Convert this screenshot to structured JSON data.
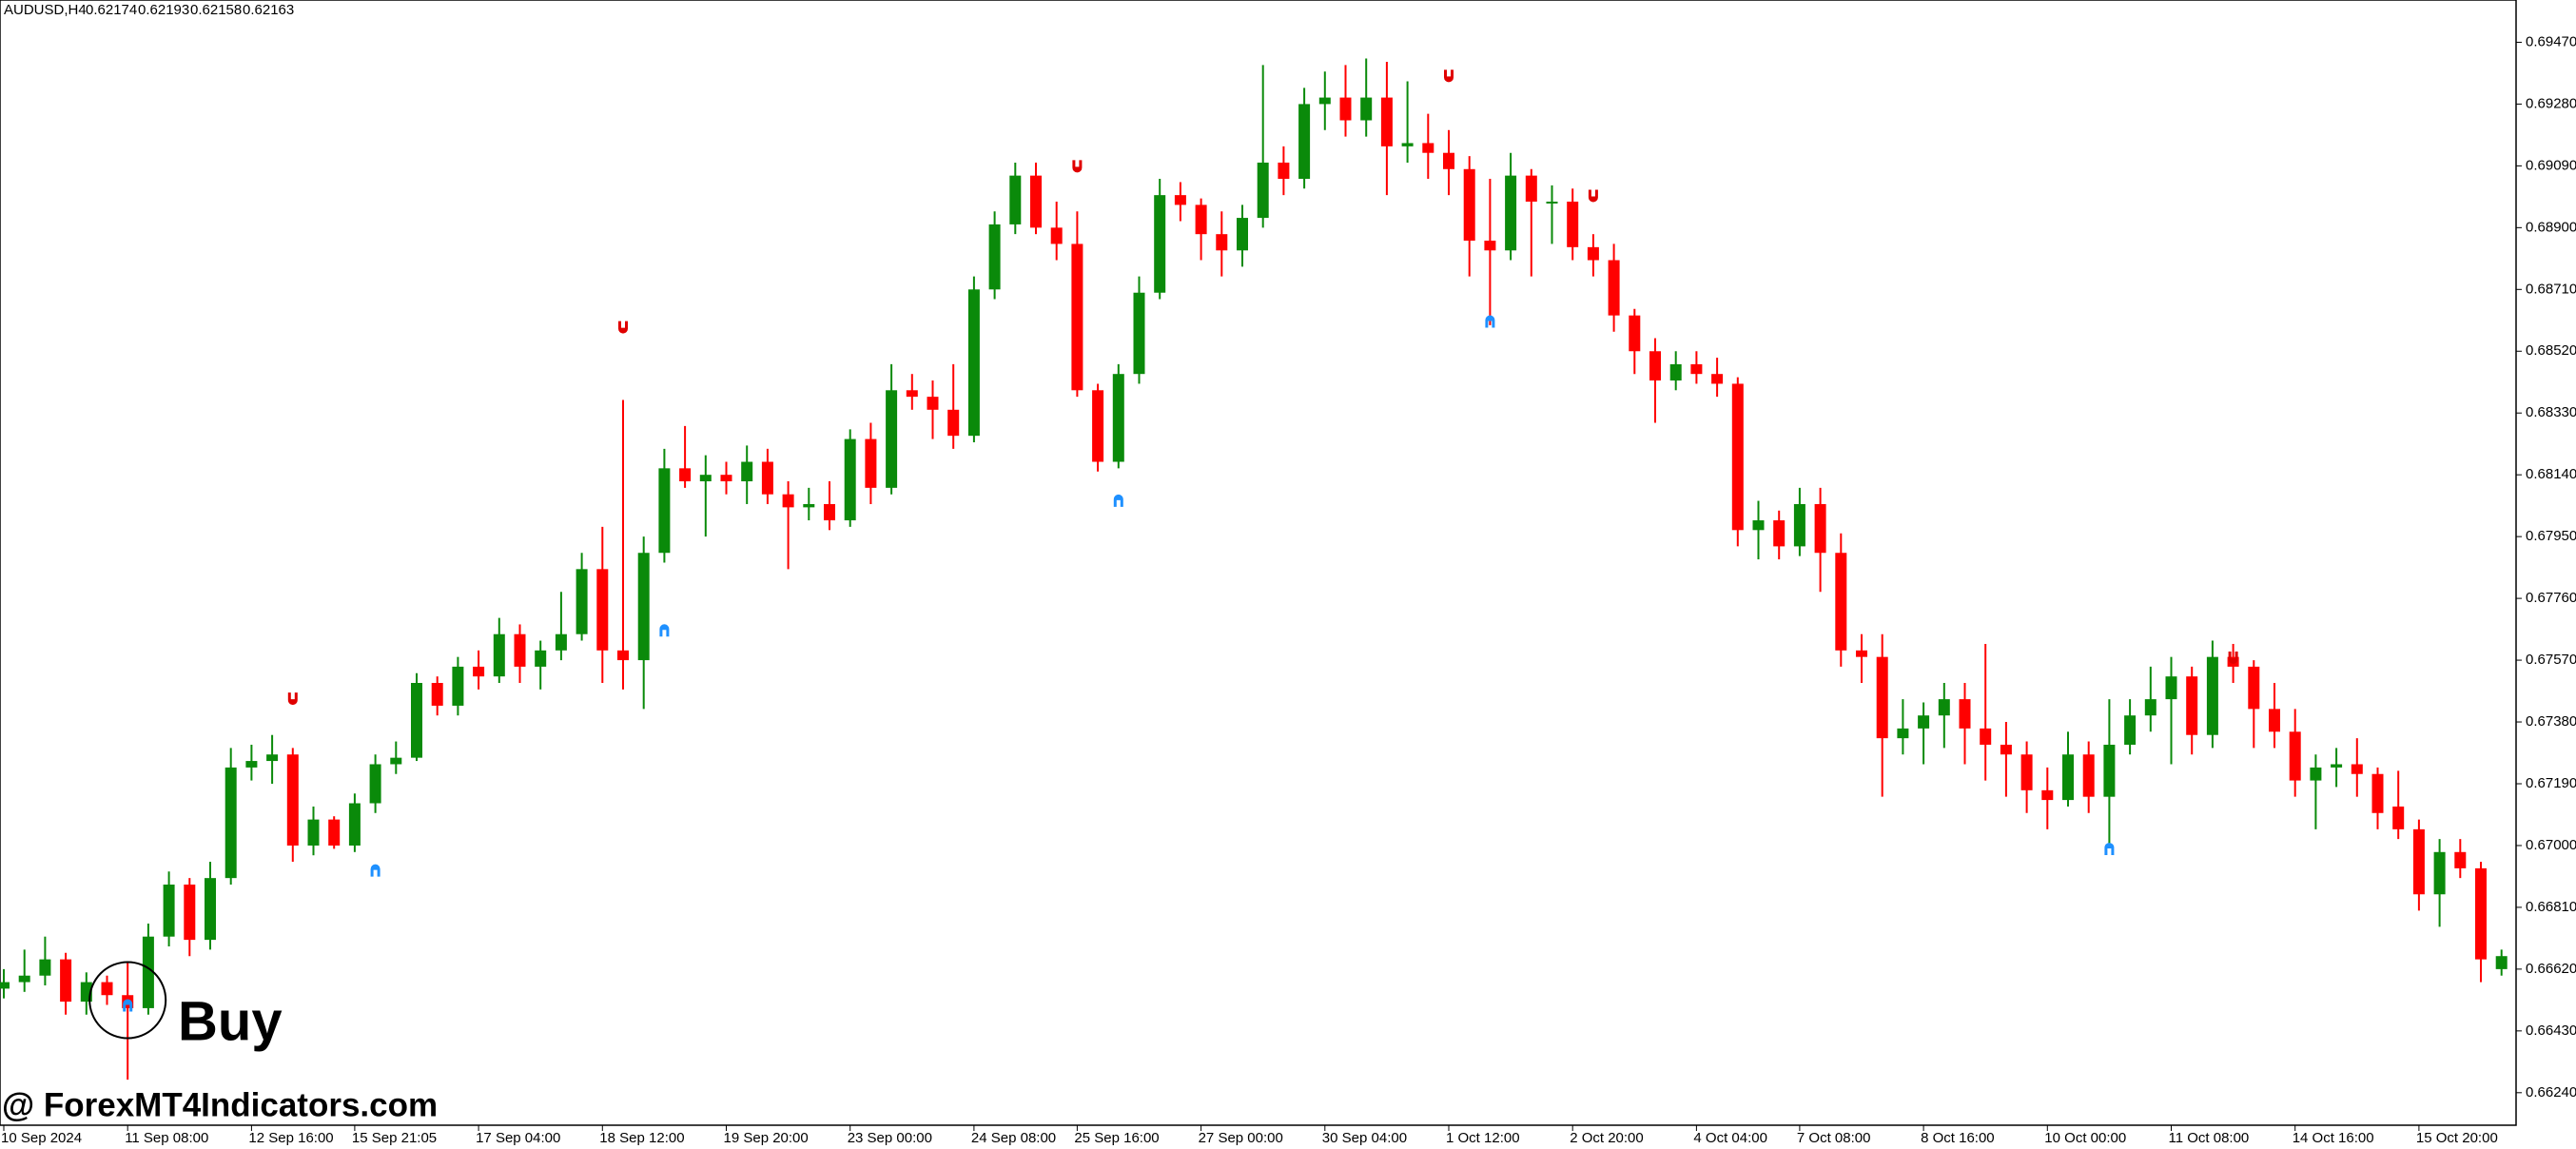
{
  "chart_data": {
    "type": "candlestick",
    "title": "AUDUSD,H4",
    "quote": [
      0.62174,
      0.62193,
      0.62158,
      0.62163
    ],
    "up_color": "#0a8a0a",
    "down_color": "#ff0000",
    "ylim": [
      0.6614,
      0.696
    ],
    "yticks": [
      {
        "value": 0.6947,
        "label": "0.69470"
      },
      {
        "value": 0.6928,
        "label": "0.69280"
      },
      {
        "value": 0.6909,
        "label": "0.69090"
      },
      {
        "value": 0.689,
        "label": "0.68900"
      },
      {
        "value": 0.6871,
        "label": "0.68710"
      },
      {
        "value": 0.6852,
        "label": "0.68520"
      },
      {
        "value": 0.6833,
        "label": "0.68330"
      },
      {
        "value": 0.6814,
        "label": "0.68140"
      },
      {
        "value": 0.6795,
        "label": "0.67950"
      },
      {
        "value": 0.6776,
        "label": "0.67760"
      },
      {
        "value": 0.6757,
        "label": "0.67570"
      },
      {
        "value": 0.6738,
        "label": "0.67380"
      },
      {
        "value": 0.6719,
        "label": "0.67190"
      },
      {
        "value": 0.67,
        "label": "0.67000"
      },
      {
        "value": 0.6681,
        "label": "0.66810"
      },
      {
        "value": 0.6662,
        "label": "0.66620"
      },
      {
        "value": 0.6643,
        "label": "0.66430"
      },
      {
        "value": 0.6624,
        "label": "0.66240"
      }
    ],
    "categories": [
      "10 Sep 2024",
      null,
      null,
      null,
      null,
      null,
      "11 Sep 08:00",
      null,
      null,
      null,
      null,
      null,
      "12 Sep 16:00",
      null,
      null,
      null,
      null,
      "15 Sep 21:05",
      null,
      null,
      null,
      null,
      null,
      "17 Sep 04:00",
      null,
      null,
      null,
      null,
      null,
      "18 Sep 12:00",
      null,
      null,
      null,
      null,
      null,
      "19 Sep 20:00",
      null,
      null,
      null,
      null,
      null,
      "23 Sep 00:00",
      null,
      null,
      null,
      null,
      null,
      "24 Sep 08:00",
      null,
      null,
      null,
      null,
      "25 Sep 16:00",
      null,
      null,
      null,
      null,
      null,
      "27 Sep 00:00",
      null,
      null,
      null,
      null,
      null,
      "30 Sep 04:00",
      null,
      null,
      null,
      null,
      null,
      "1 Oct 12:00",
      null,
      null,
      null,
      null,
      null,
      "2 Oct 20:00",
      null,
      null,
      null,
      null,
      null,
      "4 Oct 04:00",
      null,
      null,
      null,
      null,
      "7 Oct 08:00",
      null,
      null,
      null,
      null,
      null,
      "8 Oct 16:00",
      null,
      null,
      null,
      null,
      null,
      "10 Oct 00:00",
      null,
      null,
      null,
      null,
      null,
      "11 Oct 08:00",
      null,
      null,
      null,
      null,
      null,
      "14 Oct 16:00",
      null,
      null,
      null,
      null,
      null,
      "15 Oct 20:00",
      null,
      null,
      null,
      null
    ],
    "candles": [
      [
        0.6656,
        0.6662,
        0.6653,
        0.6658
      ],
      [
        0.6658,
        0.6668,
        0.6655,
        0.666
      ],
      [
        0.666,
        0.6672,
        0.6657,
        0.6665
      ],
      [
        0.6665,
        0.6667,
        0.6648,
        0.6652
      ],
      [
        0.6652,
        0.6661,
        0.6648,
        0.6658
      ],
      [
        0.6658,
        0.666,
        0.6651,
        0.6654
      ],
      [
        0.6654,
        0.6664,
        0.6628,
        0.665
      ],
      [
        0.665,
        0.6676,
        0.6648,
        0.6672
      ],
      [
        0.6672,
        0.6692,
        0.6669,
        0.6688
      ],
      [
        0.6688,
        0.669,
        0.6666,
        0.6671
      ],
      [
        0.6671,
        0.6695,
        0.6668,
        0.669
      ],
      [
        0.669,
        0.673,
        0.6688,
        0.6724
      ],
      [
        0.6724,
        0.6731,
        0.672,
        0.6726
      ],
      [
        0.6726,
        0.6734,
        0.6719,
        0.6728
      ],
      [
        0.6728,
        0.673,
        0.6695,
        0.67
      ],
      [
        0.67,
        0.6712,
        0.6697,
        0.6708
      ],
      [
        0.6708,
        0.6709,
        0.6699,
        0.67
      ],
      [
        0.67,
        0.6716,
        0.6698,
        0.6713
      ],
      [
        0.6713,
        0.6728,
        0.671,
        0.6725
      ],
      [
        0.6725,
        0.6732,
        0.6722,
        0.6727
      ],
      [
        0.6727,
        0.6753,
        0.6726,
        0.675
      ],
      [
        0.675,
        0.6752,
        0.674,
        0.6743
      ],
      [
        0.6743,
        0.6758,
        0.674,
        0.6755
      ],
      [
        0.6755,
        0.676,
        0.6748,
        0.6752
      ],
      [
        0.6752,
        0.677,
        0.675,
        0.6765
      ],
      [
        0.6765,
        0.6768,
        0.675,
        0.6755
      ],
      [
        0.6755,
        0.6763,
        0.6748,
        0.676
      ],
      [
        0.676,
        0.6778,
        0.6757,
        0.6765
      ],
      [
        0.6765,
        0.679,
        0.6763,
        0.6785
      ],
      [
        0.6785,
        0.6798,
        0.675,
        0.676
      ],
      [
        0.676,
        0.6837,
        0.6748,
        0.6757
      ],
      [
        0.6757,
        0.6795,
        0.6742,
        0.679
      ],
      [
        0.679,
        0.6822,
        0.6787,
        0.6816
      ],
      [
        0.6816,
        0.6829,
        0.681,
        0.6812
      ],
      [
        0.6812,
        0.682,
        0.6795,
        0.6814
      ],
      [
        0.6814,
        0.6818,
        0.6808,
        0.6812
      ],
      [
        0.6812,
        0.6823,
        0.6805,
        0.6818
      ],
      [
        0.6818,
        0.6822,
        0.6805,
        0.6808
      ],
      [
        0.6808,
        0.6812,
        0.6785,
        0.6804
      ],
      [
        0.6804,
        0.681,
        0.68,
        0.6805
      ],
      [
        0.6805,
        0.6812,
        0.6797,
        0.68
      ],
      [
        0.68,
        0.6828,
        0.6798,
        0.6825
      ],
      [
        0.6825,
        0.683,
        0.6805,
        0.681
      ],
      [
        0.681,
        0.6848,
        0.6808,
        0.684
      ],
      [
        0.684,
        0.6845,
        0.6834,
        0.6838
      ],
      [
        0.6838,
        0.6843,
        0.6825,
        0.6834
      ],
      [
        0.6834,
        0.6848,
        0.6822,
        0.6826
      ],
      [
        0.6826,
        0.6875,
        0.6824,
        0.6871
      ],
      [
        0.6871,
        0.6895,
        0.6868,
        0.6891
      ],
      [
        0.6891,
        0.691,
        0.6888,
        0.6906
      ],
      [
        0.6906,
        0.691,
        0.6888,
        0.689
      ],
      [
        0.689,
        0.6898,
        0.688,
        0.6885
      ],
      [
        0.6885,
        0.6895,
        0.6838,
        0.684
      ],
      [
        0.684,
        0.6842,
        0.6815,
        0.6818
      ],
      [
        0.6818,
        0.6848,
        0.6816,
        0.6845
      ],
      [
        0.6845,
        0.6875,
        0.6842,
        0.687
      ],
      [
        0.687,
        0.6905,
        0.6868,
        0.69
      ],
      [
        0.69,
        0.6904,
        0.6892,
        0.6897
      ],
      [
        0.6897,
        0.6899,
        0.688,
        0.6888
      ],
      [
        0.6888,
        0.6895,
        0.6875,
        0.6883
      ],
      [
        0.6883,
        0.6897,
        0.6878,
        0.6893
      ],
      [
        0.6893,
        0.694,
        0.689,
        0.691
      ],
      [
        0.691,
        0.6915,
        0.69,
        0.6905
      ],
      [
        0.6905,
        0.6933,
        0.6902,
        0.6928
      ],
      [
        0.6928,
        0.6938,
        0.692,
        0.693
      ],
      [
        0.693,
        0.694,
        0.6918,
        0.6923
      ],
      [
        0.6923,
        0.6942,
        0.6918,
        0.693
      ],
      [
        0.693,
        0.6941,
        0.69,
        0.6915
      ],
      [
        0.6915,
        0.6935,
        0.691,
        0.6916
      ],
      [
        0.6916,
        0.6925,
        0.6905,
        0.6913
      ],
      [
        0.6913,
        0.692,
        0.69,
        0.6908
      ],
      [
        0.6908,
        0.6912,
        0.6875,
        0.6886
      ],
      [
        0.6886,
        0.6905,
        0.686,
        0.6883
      ],
      [
        0.6883,
        0.6913,
        0.688,
        0.6906
      ],
      [
        0.6906,
        0.6908,
        0.6875,
        0.6898
      ],
      [
        0.6898,
        0.6903,
        0.6885,
        0.6898
      ],
      [
        0.6898,
        0.6902,
        0.688,
        0.6884
      ],
      [
        0.6884,
        0.6888,
        0.6875,
        0.688
      ],
      [
        0.688,
        0.6885,
        0.6858,
        0.6863
      ],
      [
        0.6863,
        0.6865,
        0.6845,
        0.6852
      ],
      [
        0.6852,
        0.6856,
        0.683,
        0.6843
      ],
      [
        0.6843,
        0.6852,
        0.684,
        0.6848
      ],
      [
        0.6848,
        0.6852,
        0.6842,
        0.6845
      ],
      [
        0.6845,
        0.685,
        0.6838,
        0.6842
      ],
      [
        0.6842,
        0.6844,
        0.6792,
        0.6797
      ],
      [
        0.6797,
        0.6806,
        0.6788,
        0.68
      ],
      [
        0.68,
        0.6803,
        0.6788,
        0.6792
      ],
      [
        0.6792,
        0.681,
        0.6789,
        0.6805
      ],
      [
        0.6805,
        0.681,
        0.6778,
        0.679
      ],
      [
        0.679,
        0.6796,
        0.6755,
        0.676
      ],
      [
        0.676,
        0.6765,
        0.675,
        0.6758
      ],
      [
        0.6758,
        0.6765,
        0.6715,
        0.6733
      ],
      [
        0.6733,
        0.6745,
        0.6728,
        0.6736
      ],
      [
        0.6736,
        0.6744,
        0.6725,
        0.674
      ],
      [
        0.674,
        0.675,
        0.673,
        0.6745
      ],
      [
        0.6745,
        0.675,
        0.6725,
        0.6736
      ],
      [
        0.6736,
        0.6762,
        0.672,
        0.6731
      ],
      [
        0.6731,
        0.6738,
        0.6715,
        0.6728
      ],
      [
        0.6728,
        0.6732,
        0.671,
        0.6717
      ],
      [
        0.6717,
        0.6724,
        0.6705,
        0.6714
      ],
      [
        0.6714,
        0.6735,
        0.6712,
        0.6728
      ],
      [
        0.6728,
        0.6732,
        0.671,
        0.6715
      ],
      [
        0.6715,
        0.6745,
        0.67,
        0.6731
      ],
      [
        0.6731,
        0.6745,
        0.6728,
        0.674
      ],
      [
        0.674,
        0.6755,
        0.6735,
        0.6745
      ],
      [
        0.6745,
        0.6758,
        0.6725,
        0.6752
      ],
      [
        0.6752,
        0.6755,
        0.6728,
        0.6734
      ],
      [
        0.6734,
        0.6763,
        0.673,
        0.6758
      ],
      [
        0.6758,
        0.6762,
        0.675,
        0.6755
      ],
      [
        0.6755,
        0.6757,
        0.673,
        0.6742
      ],
      [
        0.6742,
        0.675,
        0.673,
        0.6735
      ],
      [
        0.6735,
        0.6742,
        0.6715,
        0.672
      ],
      [
        0.672,
        0.6728,
        0.6705,
        0.6724
      ],
      [
        0.6724,
        0.673,
        0.6718,
        0.6725
      ],
      [
        0.6725,
        0.6733,
        0.6715,
        0.6722
      ],
      [
        0.6722,
        0.6724,
        0.6705,
        0.671
      ],
      [
        0.6712,
        0.6723,
        0.6702,
        0.6705
      ],
      [
        0.6705,
        0.6708,
        0.668,
        0.6685
      ],
      [
        0.6685,
        0.6702,
        0.6675,
        0.6698
      ],
      [
        0.6698,
        0.6702,
        0.669,
        0.6693
      ],
      [
        0.6693,
        0.6695,
        0.6658,
        0.6665
      ],
      [
        0.6662,
        0.6668,
        0.666,
        0.6666
      ]
    ],
    "buy_signals": {
      "color": "#1e90ff",
      "index": [
        6,
        18,
        32,
        54,
        72,
        102
      ],
      "values": [
        0.66507,
        0.66922,
        0.6766,
        0.68059,
        0.6861,
        0.66988
      ]
    },
    "sell_signals": {
      "color": "#e00000",
      "index": [
        14,
        30,
        52,
        70,
        77,
        108
      ],
      "values": [
        0.67453,
        0.68595,
        0.6909,
        0.69368,
        0.68999,
        0.67579
      ]
    },
    "annotation": "Buy",
    "watermark": "@ ForexMT4Indicators.com"
  }
}
